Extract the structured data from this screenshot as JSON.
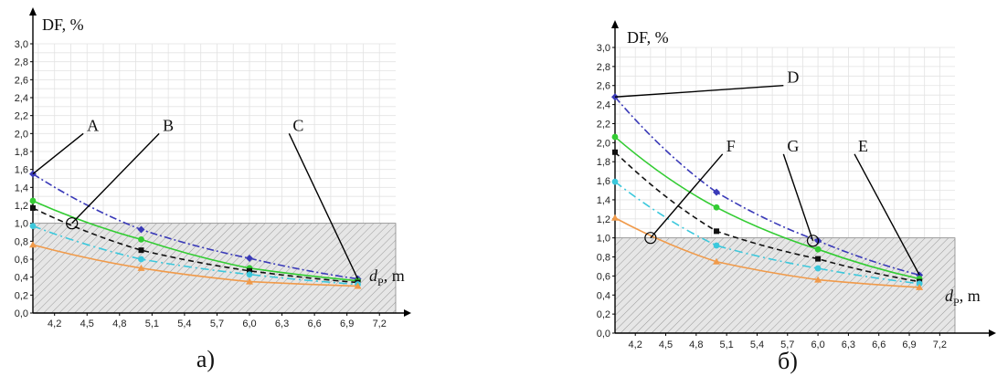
{
  "chart_data": [
    {
      "type": "line",
      "caption": "а)",
      "ylabel": "DF, %",
      "xlabel_main": "d",
      "xlabel_sub": "P",
      "xlabel_unit": ", m",
      "xlim": [
        4.0,
        7.35
      ],
      "ylim": [
        0,
        3.0
      ],
      "xticks": [
        "4,2",
        "4,5",
        "4,8",
        "5,1",
        "5,4",
        "5,7",
        "6,0",
        "6,3",
        "6,6",
        "6,9",
        "7,2"
      ],
      "yticks": [
        "0,0",
        "0,2",
        "0,4",
        "0,6",
        "0,8",
        "1,0",
        "1,2",
        "1,4",
        "1,6",
        "1,8",
        "2,0",
        "2,2",
        "2,4",
        "2,6",
        "2,8",
        "3,0"
      ],
      "threshold": 1.0,
      "series": [
        {
          "color": "#3a3ab8",
          "dash": "8,3,2,3",
          "marker": "diamond",
          "x": [
            4.0,
            5.0,
            6.0,
            7.0
          ],
          "y": [
            1.55,
            0.93,
            0.61,
            0.38
          ]
        },
        {
          "color": "#33cc33",
          "dash": "",
          "marker": "circle",
          "x": [
            4.0,
            5.0,
            6.0,
            7.0
          ],
          "y": [
            1.25,
            0.82,
            0.5,
            0.36
          ]
        },
        {
          "color": "#111111",
          "dash": "6,4",
          "marker": "square",
          "x": [
            4.0,
            5.0,
            6.0,
            7.0
          ],
          "y": [
            1.17,
            0.7,
            0.47,
            0.34
          ]
        },
        {
          "color": "#3cc8dc",
          "dash": "9,4,2,4",
          "marker": "circle",
          "x": [
            4.0,
            5.0,
            6.0,
            7.0
          ],
          "y": [
            0.97,
            0.6,
            0.43,
            0.32
          ]
        },
        {
          "color": "#f09a4a",
          "dash": "",
          "marker": "triangle",
          "x": [
            4.0,
            5.0,
            6.0,
            7.0
          ],
          "y": [
            0.76,
            0.5,
            0.35,
            0.3
          ]
        }
      ],
      "annotations": [
        {
          "text": "A",
          "tx": 4.55,
          "ty": 2.0,
          "px": 4.0,
          "py": 1.55
        },
        {
          "text": "B",
          "tx": 5.25,
          "ty": 2.0,
          "px": 4.36,
          "py": 1.0,
          "circle": true
        },
        {
          "text": "C",
          "tx": 6.45,
          "ty": 2.0,
          "px": 7.0,
          "py": 0.38
        }
      ]
    },
    {
      "type": "line",
      "caption": "б)",
      "ylabel": "DF, %",
      "xlabel_main": "d",
      "xlabel_sub": "P",
      "xlabel_unit": ", m",
      "xlim": [
        4.0,
        7.35
      ],
      "ylim": [
        0,
        3.0
      ],
      "xticks": [
        "4,2",
        "4,5",
        "4,8",
        "5,1",
        "5,4",
        "5,7",
        "6,0",
        "6,3",
        "6,6",
        "6,9",
        "7,2"
      ],
      "yticks": [
        "0,0",
        "0,2",
        "0,4",
        "0,6",
        "0,8",
        "1,0",
        "1,2",
        "1,4",
        "1,6",
        "1,8",
        "2,0",
        "2,2",
        "2,4",
        "2,6",
        "2,8",
        "3,0"
      ],
      "threshold": 1.0,
      "series": [
        {
          "color": "#3a3ab8",
          "dash": "8,3,2,3",
          "marker": "diamond",
          "x": [
            4.0,
            5.0,
            6.0,
            7.0
          ],
          "y": [
            2.48,
            1.48,
            0.97,
            0.61
          ]
        },
        {
          "color": "#33cc33",
          "dash": "",
          "marker": "circle",
          "x": [
            4.0,
            5.0,
            6.0,
            7.0
          ],
          "y": [
            2.06,
            1.32,
            0.88,
            0.57
          ]
        },
        {
          "color": "#111111",
          "dash": "6,4",
          "marker": "square",
          "x": [
            4.0,
            5.0,
            6.0,
            7.0
          ],
          "y": [
            1.9,
            1.07,
            0.78,
            0.54
          ]
        },
        {
          "color": "#3cc8dc",
          "dash": "9,4,2,4",
          "marker": "circle",
          "x": [
            4.0,
            5.0,
            6.0,
            7.0
          ],
          "y": [
            1.59,
            0.92,
            0.68,
            0.52
          ]
        },
        {
          "color": "#f09a4a",
          "dash": "",
          "marker": "triangle",
          "x": [
            4.0,
            5.0,
            6.0,
            7.0
          ],
          "y": [
            1.21,
            0.75,
            0.56,
            0.48
          ]
        }
      ],
      "annotations": [
        {
          "text": "D",
          "tx": 5.75,
          "ty": 2.6,
          "px": 4.0,
          "py": 2.48
        },
        {
          "text": "F",
          "tx": 5.15,
          "ty": 1.88,
          "px": 4.35,
          "py": 1.0,
          "circle": true
        },
        {
          "text": "G",
          "tx": 5.75,
          "ty": 1.88,
          "px": 5.95,
          "py": 0.97,
          "circle": true
        },
        {
          "text": "E",
          "tx": 6.45,
          "ty": 1.88,
          "px": 7.0,
          "py": 0.61
        }
      ]
    }
  ]
}
